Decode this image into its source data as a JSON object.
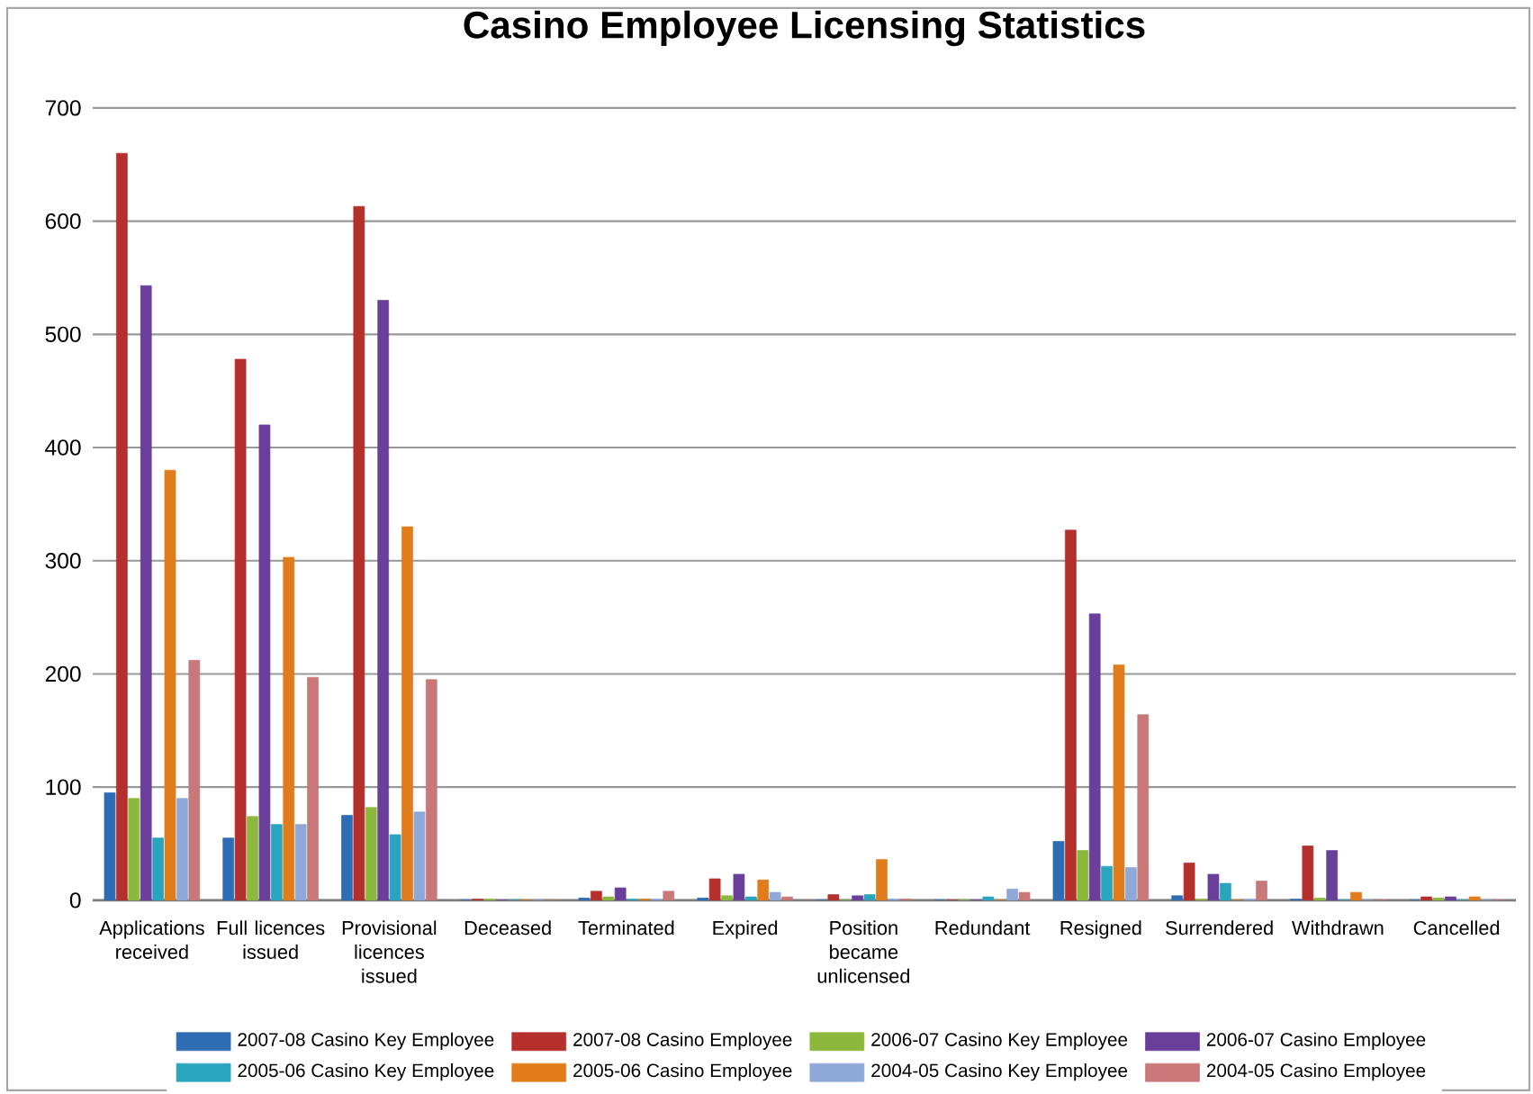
{
  "chart_data": {
    "type": "bar",
    "title": "Casino Employee Licensing Statistics",
    "categories": [
      "Applications received",
      "Full licences issued",
      "Provisional licences issued",
      "Deceased",
      "Terminated",
      "Expired",
      "Position became unlicensed",
      "Redundant",
      "Resigned",
      "Surrendered",
      "Withdrawn",
      "Cancelled"
    ],
    "series": [
      {
        "name": "2007-08 Casino Key Employee",
        "color": "#2e6db4",
        "values": [
          95,
          55,
          75,
          0,
          2,
          2,
          0,
          0,
          52,
          4,
          1,
          0
        ]
      },
      {
        "name": "2007-08 Casino Employee",
        "color": "#b5302d",
        "values": [
          660,
          478,
          613,
          1,
          8,
          19,
          5,
          0,
          327,
          33,
          48,
          3
        ]
      },
      {
        "name": "2006-07 Casino Key Employee",
        "color": "#8db83e",
        "values": [
          90,
          74,
          82,
          1,
          3,
          4,
          0,
          0,
          44,
          1,
          2,
          2
        ]
      },
      {
        "name": "2006-07 Casino Employee",
        "color": "#6a3f9a",
        "values": [
          543,
          420,
          530,
          0,
          11,
          23,
          4,
          0,
          253,
          23,
          44,
          3
        ]
      },
      {
        "name": "2005-06 Casino Key Employee",
        "color": "#2aa5bd",
        "values": [
          55,
          67,
          58,
          0,
          1,
          3,
          5,
          3,
          30,
          15,
          0,
          0
        ]
      },
      {
        "name": "2005-06 Casino Employee",
        "color": "#e07c1c",
        "values": [
          380,
          303,
          330,
          0,
          1,
          18,
          36,
          0,
          208,
          0,
          7,
          3
        ]
      },
      {
        "name": "2004-05 Casino Key Employee",
        "color": "#8ea9d8",
        "values": [
          90,
          67,
          78,
          0,
          1,
          7,
          1,
          10,
          29,
          1,
          0,
          0
        ]
      },
      {
        "name": "2004-05 Casino Employee",
        "color": "#c9787a",
        "values": [
          212,
          197,
          195,
          0,
          8,
          3,
          1,
          7,
          164,
          17,
          0,
          0
        ]
      }
    ],
    "ylim": [
      0,
      700
    ],
    "yticks": [
      0,
      100,
      200,
      300,
      400,
      500,
      600,
      700
    ],
    "grid": "y",
    "legend": "bottom"
  }
}
